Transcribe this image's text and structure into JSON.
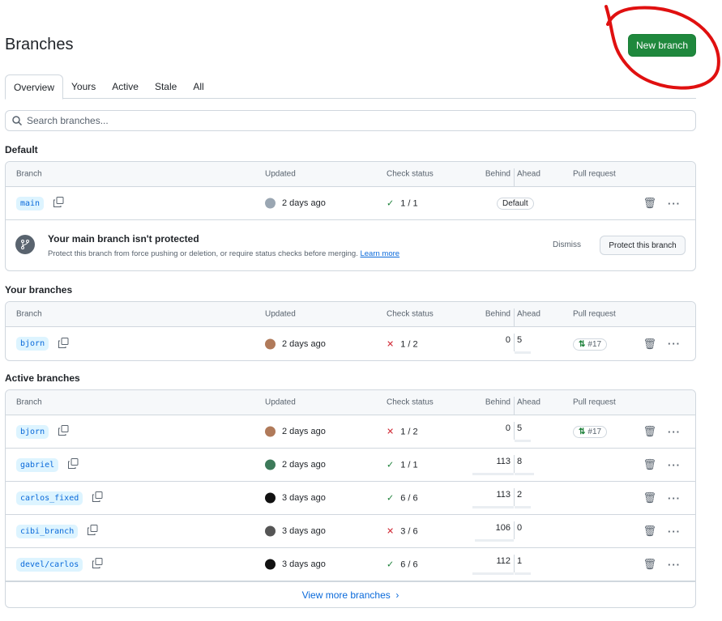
{
  "title": "Branches",
  "new_branch": "New branch",
  "tabs": [
    "Overview",
    "Yours",
    "Active",
    "Stale",
    "All"
  ],
  "search_placeholder": "Search branches...",
  "columns": {
    "branch": "Branch",
    "updated": "Updated",
    "check": "Check status",
    "behind": "Behind",
    "ahead": "Ahead",
    "pr": "Pull request"
  },
  "sections": {
    "default": "Default",
    "yours": "Your branches",
    "active": "Active branches"
  },
  "default_row": {
    "name": "main",
    "updated": "2 days ago",
    "check": "1 / 1",
    "check_ok": true,
    "badge": "Default"
  },
  "warning": {
    "title": "Your main branch isn't protected",
    "text": "Protect this branch from force pushing or deletion, or require status checks before merging.",
    "link": "Learn more",
    "dismiss": "Dismiss",
    "protect": "Protect this branch"
  },
  "your_branches": [
    {
      "name": "bjorn",
      "updated": "2 days ago",
      "check": "1 / 2",
      "check_ok": false,
      "behind": 0,
      "ahead": 5,
      "pr": "#17",
      "avatar": "#b07a5a"
    }
  ],
  "active_branches": [
    {
      "name": "bjorn",
      "updated": "2 days ago",
      "check": "1 / 2",
      "check_ok": false,
      "behind": 0,
      "ahead": 5,
      "pr": "#17",
      "avatar": "#b07a5a"
    },
    {
      "name": "gabriel",
      "updated": "2 days ago",
      "check": "1 / 1",
      "check_ok": true,
      "behind": 113,
      "ahead": 8,
      "pr": "",
      "avatar": "#3d7a5a"
    },
    {
      "name": "carlos_fixed",
      "updated": "3 days ago",
      "check": "6 / 6",
      "check_ok": true,
      "behind": 113,
      "ahead": 2,
      "pr": "",
      "avatar": "#111111"
    },
    {
      "name": "cibi_branch",
      "updated": "3 days ago",
      "check": "3 / 6",
      "check_ok": false,
      "behind": 106,
      "ahead": 0,
      "pr": "",
      "avatar": "#555555"
    },
    {
      "name": "devel/carlos",
      "updated": "3 days ago",
      "check": "6 / 6",
      "check_ok": true,
      "behind": 112,
      "ahead": 1,
      "pr": "",
      "avatar": "#111111"
    }
  ],
  "view_more": "View more branches",
  "annotation_color": "#e01010"
}
